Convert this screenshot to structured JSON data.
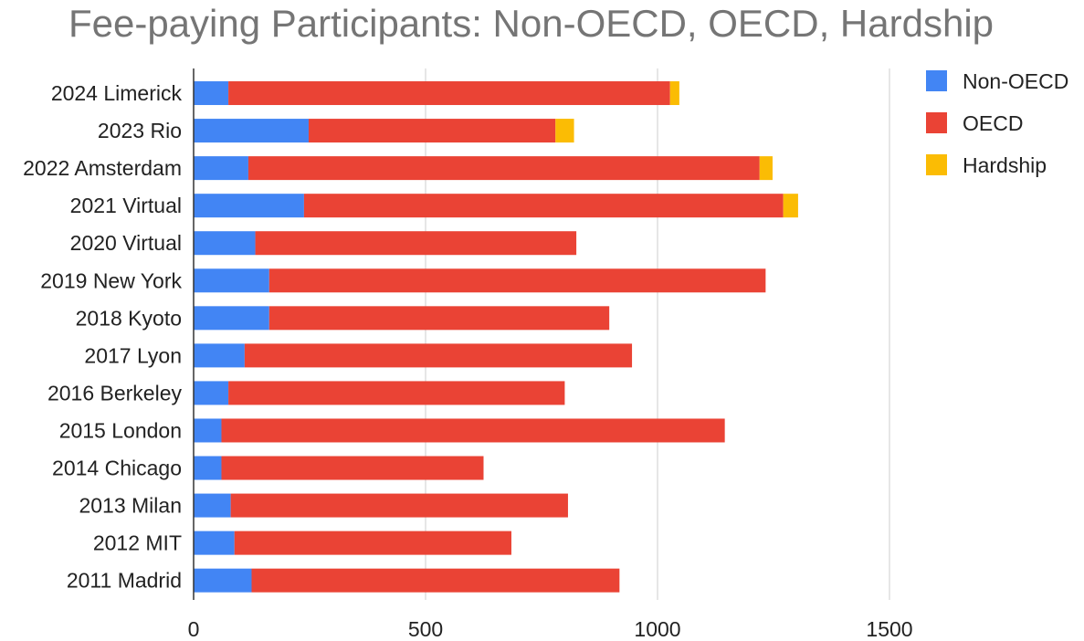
{
  "chart_data": {
    "type": "bar",
    "orientation": "horizontal",
    "stacked": true,
    "title": "Fee-paying Participants: Non-OECD, OECD, Hardship",
    "xlabel": "",
    "ylabel": "",
    "xlim": [
      0,
      1500
    ],
    "xticks": [
      0,
      500,
      1000,
      1500
    ],
    "grid": true,
    "legend_position": "right",
    "categories": [
      "2024 Limerick",
      "2023 Rio",
      "2022 Amsterdam",
      "2021 Virtual",
      "2020 Virtual",
      "2019 New York",
      "2018 Kyoto",
      "2017 Lyon",
      "2016 Berkeley",
      "2015 London",
      "2014 Chicago",
      "2013 Milan",
      "2012 MIT",
      "2011 Madrid"
    ],
    "series": [
      {
        "name": "Non-OECD",
        "color": "#4285f4",
        "values": [
          75,
          248,
          118,
          238,
          133,
          163,
          163,
          110,
          75,
          60,
          60,
          80,
          88,
          125
        ]
      },
      {
        "name": "OECD",
        "color": "#ea4335",
        "values": [
          952,
          532,
          1102,
          1033,
          692,
          1070,
          733,
          835,
          725,
          1085,
          565,
          727,
          597,
          793
        ]
      },
      {
        "name": "Hardship",
        "color": "#fbbc04",
        "values": [
          20,
          40,
          28,
          32,
          0,
          0,
          0,
          0,
          0,
          0,
          0,
          0,
          0,
          0
        ]
      }
    ]
  }
}
